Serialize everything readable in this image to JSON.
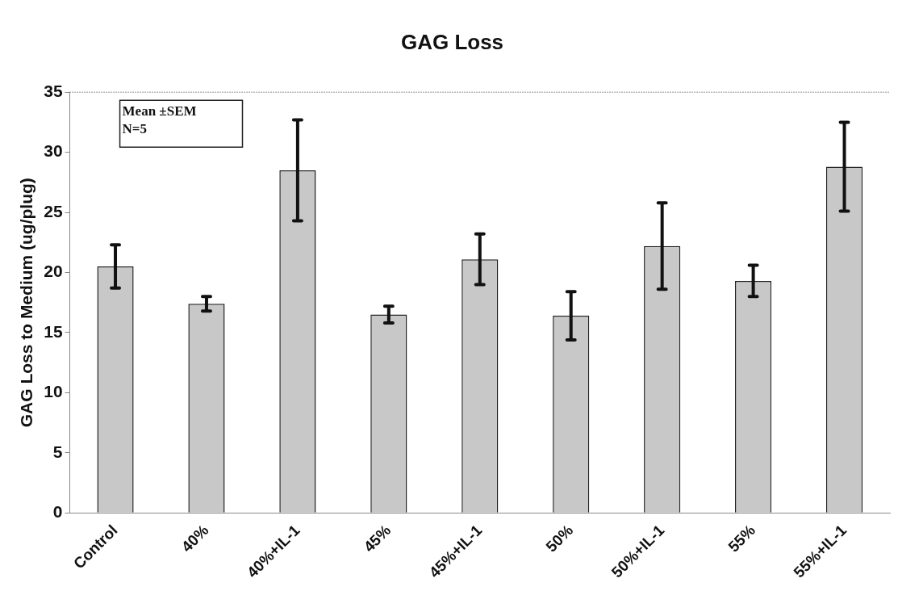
{
  "chart_data": {
    "type": "bar",
    "title": "GAG Loss",
    "ylabel": "GAG Loss to Medium (ug/plug)",
    "categories": [
      "Control",
      "40%",
      "40%+IL-1",
      "45%",
      "45%+IL-1",
      "50%",
      "50%+IL-1",
      "55%",
      "55%+IL-1"
    ],
    "values": [
      20.5,
      17.4,
      28.5,
      16.5,
      21.1,
      16.4,
      22.2,
      19.3,
      28.8
    ],
    "errors": [
      1.8,
      0.6,
      4.2,
      0.7,
      2.1,
      2.0,
      3.6,
      1.3,
      3.7
    ],
    "color": "#c8c8c8",
    "ylim": [
      0,
      35
    ],
    "yticks": [
      0,
      5,
      10,
      15,
      20,
      25,
      30,
      35
    ],
    "annotations": [
      "Mean ±SEM\nN=5"
    ],
    "grid": false,
    "legend": false
  }
}
